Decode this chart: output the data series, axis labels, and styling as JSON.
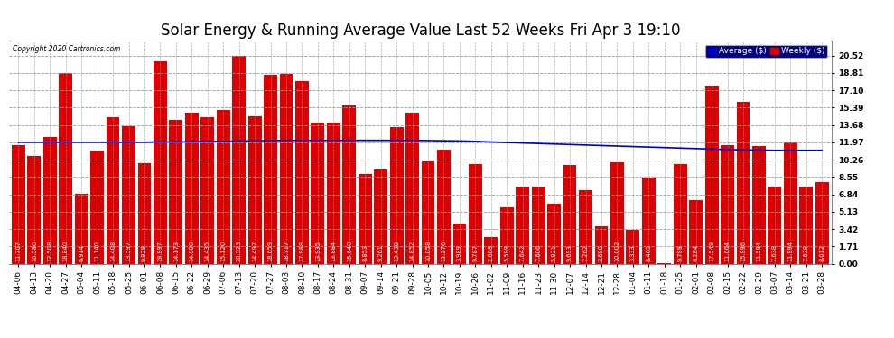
{
  "title": "Solar Energy & Running Average Value Last 52 Weeks Fri Apr 3 19:10",
  "copyright": "Copyright 2020 Cartronics.com",
  "categories": [
    "04-06",
    "04-13",
    "04-20",
    "04-27",
    "05-04",
    "05-11",
    "05-18",
    "05-25",
    "06-01",
    "06-08",
    "06-15",
    "06-22",
    "06-29",
    "07-06",
    "07-13",
    "07-20",
    "07-27",
    "08-03",
    "08-10",
    "08-17",
    "08-24",
    "08-31",
    "09-07",
    "09-14",
    "09-21",
    "09-28",
    "10-05",
    "10-12",
    "10-19",
    "10-26",
    "11-02",
    "11-09",
    "11-16",
    "11-23",
    "11-30",
    "12-07",
    "12-14",
    "12-21",
    "12-28",
    "01-04",
    "01-11",
    "01-18",
    "01-25",
    "02-01",
    "02-08",
    "02-15",
    "02-22",
    "02-29",
    "03-07",
    "03-14",
    "03-21",
    "03-28"
  ],
  "weekly_values": [
    11.707,
    10.58,
    12.508,
    18.84,
    6.914,
    11.14,
    14.408,
    13.597,
    9.928,
    19.997,
    14.173,
    14.9,
    14.435,
    15.12,
    20.523,
    14.497,
    18.659,
    18.717,
    17.988,
    13.935,
    13.884,
    15.64,
    8.853,
    9.261,
    13.438,
    14.852,
    10.058,
    11.276,
    3.989,
    9.787,
    2.608,
    5.599,
    7.642,
    7.606,
    5.921,
    9.693,
    7.262,
    3.69,
    10.002,
    3.333,
    8.465,
    0.008,
    9.799,
    6.284,
    17.549,
    11.664,
    15.996,
    11.594,
    7.638,
    11.994,
    7.638,
    8.012
  ],
  "average_values": [
    11.97,
    11.97,
    11.97,
    11.97,
    11.97,
    11.97,
    11.97,
    11.97,
    11.97,
    12.0,
    12.0,
    12.02,
    12.04,
    12.06,
    12.1,
    12.12,
    12.14,
    12.16,
    12.16,
    12.16,
    12.16,
    12.16,
    12.16,
    12.16,
    12.16,
    12.16,
    12.14,
    12.12,
    12.1,
    12.06,
    12.0,
    11.95,
    11.9,
    11.85,
    11.8,
    11.75,
    11.7,
    11.65,
    11.6,
    11.55,
    11.5,
    11.45,
    11.4,
    11.35,
    11.3,
    11.25,
    11.22,
    11.2,
    11.18,
    11.18,
    11.18,
    11.18
  ],
  "bar_color": "#dd0000",
  "line_color": "#0000cc",
  "background_color": "#ffffff",
  "grid_color": "#999999",
  "ylim": [
    0.0,
    22.0
  ],
  "yticks": [
    0.0,
    1.71,
    3.42,
    5.13,
    6.84,
    8.55,
    10.26,
    11.97,
    13.68,
    15.39,
    17.1,
    18.81,
    20.52
  ],
  "title_fontsize": 12,
  "tick_fontsize": 6.5,
  "label_fontsize": 4.8,
  "legend_labels": [
    "Average ($)",
    "Weekly ($)"
  ],
  "legend_colors": [
    "#0000cc",
    "#dd0000"
  ],
  "legend_bg": "#000080",
  "legend_text_color": "#ffffff"
}
